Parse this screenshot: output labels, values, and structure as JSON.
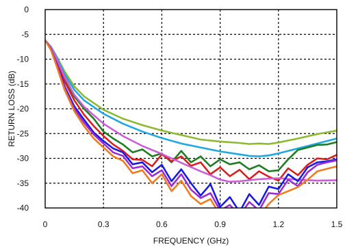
{
  "chart_data": {
    "type": "line",
    "title": "",
    "xlabel": "FREQUENCY (GHz)",
    "ylabel": "RETURN LOSS (dB)",
    "xlim": [
      0,
      1.5
    ],
    "ylim": [
      -40,
      0
    ],
    "x_ticks": [
      0,
      0.3,
      0.6,
      0.9,
      1.2,
      1.5
    ],
    "x_tick_labels": [
      "0",
      "0.3",
      "0.6",
      "0.9",
      "1.2",
      "1.5"
    ],
    "y_ticks": [
      0,
      -5,
      -10,
      -15,
      -20,
      -25,
      -30,
      -35,
      -40
    ],
    "y_tick_labels": [
      "0",
      "-5",
      "-10",
      "-15",
      "-20",
      "-25",
      "-30",
      "-35",
      "-40"
    ],
    "grid": true,
    "legend": "none",
    "series": [
      {
        "color": "#8DB92E",
        "x": [
          0.0,
          0.03,
          0.06,
          0.1,
          0.15,
          0.2,
          0.3,
          0.4,
          0.5,
          0.6,
          0.7,
          0.8,
          0.9,
          1.0,
          1.05,
          1.1,
          1.15,
          1.2,
          1.3,
          1.4,
          1.5
        ],
        "y": [
          -6.2,
          -7.5,
          -9.5,
          -12.5,
          -15.5,
          -17.5,
          -20.2,
          -22.0,
          -23.3,
          -24.4,
          -25.3,
          -26.2,
          -26.6,
          -26.9,
          -27.1,
          -27.0,
          -27.1,
          -26.8,
          -26.0,
          -25.1,
          -24.4
        ]
      },
      {
        "color": "#1FA8E0",
        "x": [
          0.0,
          0.03,
          0.06,
          0.1,
          0.15,
          0.2,
          0.3,
          0.4,
          0.5,
          0.6,
          0.7,
          0.8,
          0.9,
          1.0,
          1.05,
          1.1,
          1.15,
          1.2,
          1.3,
          1.4,
          1.5
        ],
        "y": [
          -6.2,
          -7.5,
          -9.7,
          -13.0,
          -16.2,
          -18.3,
          -21.0,
          -23.0,
          -24.6,
          -25.9,
          -27.0,
          -27.8,
          -28.6,
          -29.2,
          -29.5,
          -29.6,
          -29.4,
          -29.0,
          -28.0,
          -27.0,
          -26.0
        ]
      },
      {
        "color": "#1E7D22",
        "x": [
          0.0,
          0.03,
          0.06,
          0.1,
          0.15,
          0.2,
          0.25,
          0.3,
          0.35,
          0.4,
          0.45,
          0.5,
          0.55,
          0.6,
          0.65,
          0.7,
          0.75,
          0.8,
          0.85,
          0.9,
          0.95,
          1.0,
          1.05,
          1.1,
          1.15,
          1.2,
          1.25,
          1.3,
          1.35,
          1.4,
          1.45,
          1.5
        ],
        "y": [
          -6.2,
          -7.8,
          -10.2,
          -14.0,
          -17.5,
          -20.0,
          -22.0,
          -24.6,
          -26.0,
          -27.2,
          -28.8,
          -28.2,
          -29.6,
          -29.0,
          -30.8,
          -28.5,
          -30.8,
          -29.6,
          -31.6,
          -30.2,
          -31.2,
          -30.8,
          -32.2,
          -31.4,
          -32.6,
          -32.4,
          -30.2,
          -28.3,
          -27.8,
          -27.3,
          -27.2,
          -26.7
        ]
      },
      {
        "color": "#D91E1E",
        "x": [
          0.0,
          0.03,
          0.06,
          0.1,
          0.15,
          0.2,
          0.25,
          0.3,
          0.35,
          0.4,
          0.45,
          0.5,
          0.55,
          0.6,
          0.65,
          0.7,
          0.75,
          0.8,
          0.85,
          0.9,
          0.95,
          1.0,
          1.05,
          1.1,
          1.15,
          1.2,
          1.25,
          1.3,
          1.35,
          1.4,
          1.45,
          1.5
        ],
        "y": [
          -6.2,
          -7.8,
          -10.5,
          -14.5,
          -18.3,
          -21.2,
          -23.5,
          -25.5,
          -27.2,
          -28.5,
          -30.2,
          -30.3,
          -31.6,
          -29.2,
          -30.6,
          -29.6,
          -31.5,
          -30.8,
          -33.2,
          -31.8,
          -33.6,
          -32.3,
          -34.2,
          -32.6,
          -33.7,
          -34.5,
          -32.0,
          -33.4,
          -31.3,
          -30.0,
          -30.2,
          -29.3
        ]
      },
      {
        "color": "#C85FD6",
        "x": [
          0.0,
          0.03,
          0.06,
          0.1,
          0.15,
          0.2,
          0.3,
          0.4,
          0.5,
          0.6,
          0.7,
          0.8,
          0.85,
          0.9,
          0.95,
          1.0,
          1.1,
          1.2,
          1.3,
          1.4,
          1.5
        ],
        "y": [
          -6.2,
          -7.6,
          -10.0,
          -13.6,
          -17.2,
          -19.6,
          -23.0,
          -25.5,
          -27.5,
          -29.1,
          -30.9,
          -32.6,
          -33.4,
          -34.3,
          -34.7,
          -34.6,
          -34.2,
          -34.0,
          -34.3,
          -34.5,
          -34.4
        ]
      },
      {
        "color": "#1A1AE0",
        "x": [
          0.0,
          0.03,
          0.06,
          0.1,
          0.15,
          0.2,
          0.25,
          0.3,
          0.35,
          0.4,
          0.45,
          0.5,
          0.55,
          0.6,
          0.65,
          0.7,
          0.75,
          0.8,
          0.85,
          0.9,
          0.95,
          1.0,
          1.05,
          1.1,
          1.15,
          1.2,
          1.25,
          1.3,
          1.35,
          1.4,
          1.45,
          1.5
        ],
        "y": [
          -6.2,
          -8.0,
          -11.0,
          -15.5,
          -19.5,
          -22.2,
          -24.8,
          -26.5,
          -28.0,
          -28.8,
          -31.2,
          -30.8,
          -32.8,
          -31.3,
          -34.6,
          -32.2,
          -35.0,
          -37.5,
          -35.2,
          -39.8,
          -37.8,
          -40.8,
          -37.2,
          -39.4,
          -35.7,
          -36.2,
          -33.2,
          -34.6,
          -31.8,
          -30.8,
          -30.6,
          -30.2
        ]
      },
      {
        "color": "#9A2BD6",
        "x": [
          0.0,
          0.03,
          0.06,
          0.1,
          0.15,
          0.2,
          0.25,
          0.3,
          0.35,
          0.4,
          0.45,
          0.5,
          0.55,
          0.6,
          0.65,
          0.7,
          0.75,
          0.8,
          0.85,
          0.9,
          0.95,
          1.0,
          1.05,
          1.1,
          1.15,
          1.2,
          1.25,
          1.3,
          1.35,
          1.4,
          1.45,
          1.5
        ],
        "y": [
          -6.2,
          -8.0,
          -11.2,
          -15.8,
          -20.0,
          -22.8,
          -25.2,
          -27.0,
          -28.8,
          -29.5,
          -32.0,
          -31.6,
          -33.6,
          -32.4,
          -35.6,
          -33.2,
          -36.3,
          -38.0,
          -37.0,
          -40.5,
          -39.4,
          -41.5,
          -38.8,
          -40.5,
          -37.0,
          -37.2,
          -34.3,
          -35.6,
          -32.8,
          -31.3,
          -30.8,
          -30.4
        ]
      },
      {
        "color": "#F07A20",
        "x": [
          0.0,
          0.03,
          0.06,
          0.1,
          0.15,
          0.2,
          0.25,
          0.3,
          0.35,
          0.4,
          0.45,
          0.5,
          0.55,
          0.6,
          0.65,
          0.7,
          0.75,
          0.8,
          0.85,
          0.9,
          0.95,
          1.0,
          1.05,
          1.1,
          1.15,
          1.2,
          1.25,
          1.3,
          1.35,
          1.4,
          1.45,
          1.5
        ],
        "y": [
          -6.2,
          -8.2,
          -11.5,
          -16.2,
          -20.5,
          -23.5,
          -26.0,
          -27.8,
          -29.6,
          -30.5,
          -33.0,
          -32.4,
          -35.0,
          -33.2,
          -36.6,
          -34.5,
          -37.6,
          -39.2,
          -38.2,
          -41.5,
          -40.6,
          -42.5,
          -40.0,
          -41.6,
          -39.2,
          -37.4,
          -36.6,
          -35.8,
          -34.3,
          -32.6,
          -32.1,
          -31.6
        ]
      }
    ]
  }
}
